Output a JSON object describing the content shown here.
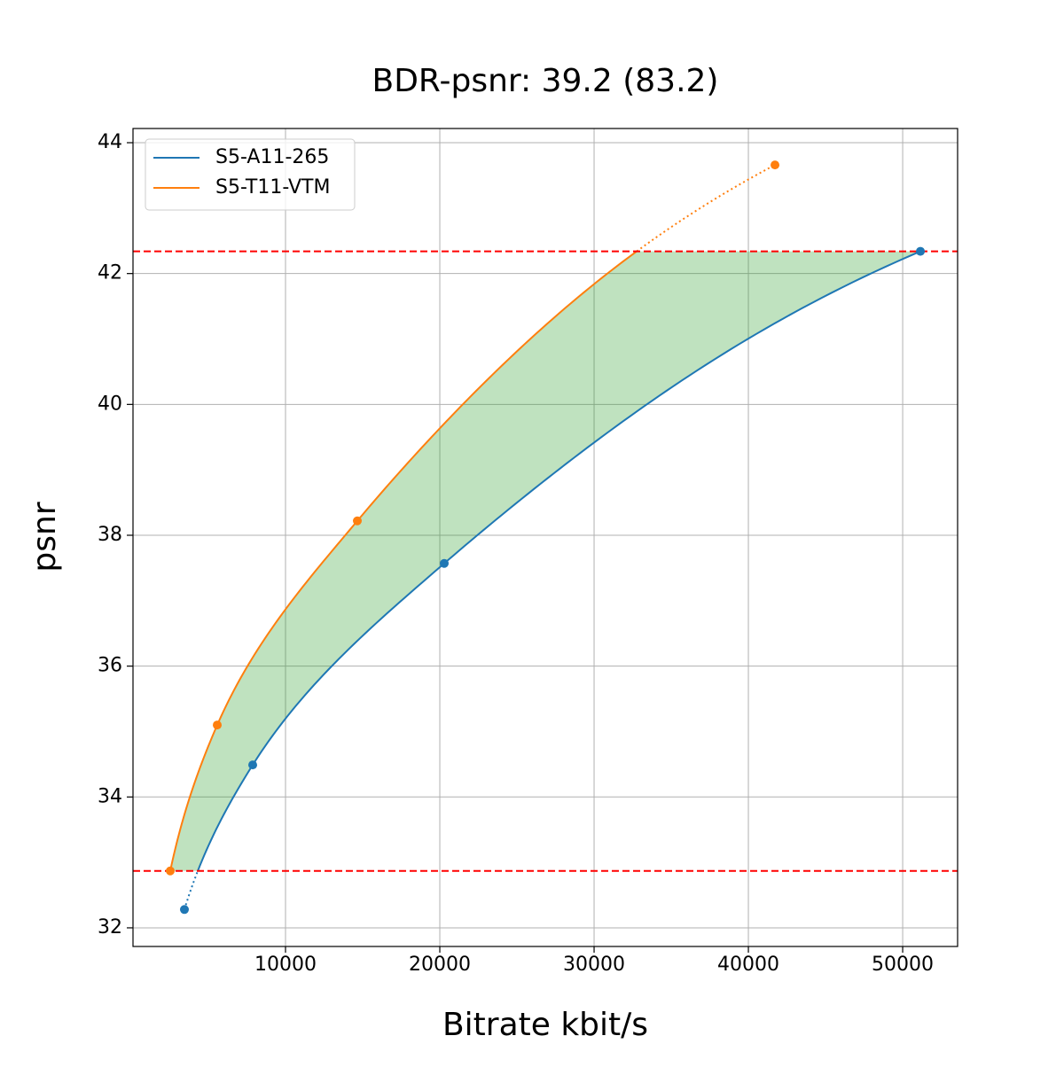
{
  "chart_data": {
    "type": "line",
    "title": "BDR-psnr: 39.2 (83.2)",
    "xlabel": "Bitrate kbit/s",
    "ylabel": "psnr",
    "series": [
      {
        "name": "S5-A11-265",
        "color": "#1f77b4",
        "x": [
          3448,
          7874,
          20287,
          51149
        ],
        "values": [
          32.28,
          34.49,
          37.57,
          42.34
        ]
      },
      {
        "name": "S5-T11-VTM",
        "color": "#ff7f0e",
        "x": [
          2529,
          5575,
          14655,
          41724
        ],
        "values": [
          32.87,
          35.1,
          38.22,
          43.66
        ]
      }
    ],
    "xlim": [
      115,
      53560
    ],
    "xticks": [
      10000,
      20000,
      30000,
      40000,
      50000
    ],
    "ylim": [
      31.715,
      44.217
    ],
    "yticks": [
      32,
      34,
      36,
      38,
      40,
      42,
      44
    ],
    "grid": true,
    "legend": "upper left"
  }
}
